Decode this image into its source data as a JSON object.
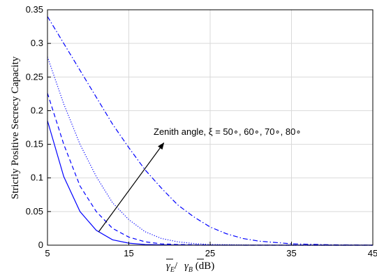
{
  "chart_data": {
    "type": "line",
    "ylabel": "Strictly Positive Secrecy Capacity",
    "xlabel": {
      "prefix": "γ",
      "sub_e": "E",
      "slash": "/ ",
      "sub_b": "B",
      "unit": " (dB)"
    },
    "xlim": [
      5,
      45
    ],
    "ylim": [
      0,
      0.35
    ],
    "xticks": [
      5,
      15,
      25,
      35,
      45
    ],
    "yticks": [
      0,
      0.05,
      0.1,
      0.15,
      0.2,
      0.25,
      0.3,
      0.35
    ],
    "ytick_labels": [
      "0",
      "0.05",
      "0.1",
      "0.15",
      "0.2",
      "0.25",
      "0.3",
      "0.35"
    ],
    "grid": true,
    "color": "#0000ff",
    "series": [
      {
        "style": "solid",
        "x": [
          5,
          7,
          9,
          11,
          13,
          15,
          17,
          20,
          25,
          30,
          35,
          40,
          45
        ],
        "y": [
          0.185,
          0.102,
          0.05,
          0.022,
          0.008,
          0.003,
          0.001,
          0.0003,
          0,
          0,
          0,
          0,
          0
        ]
      },
      {
        "style": "dashed",
        "x": [
          5,
          7,
          9,
          11,
          13,
          15,
          17,
          19,
          21,
          25,
          30,
          35,
          40,
          45
        ],
        "y": [
          0.226,
          0.15,
          0.088,
          0.05,
          0.025,
          0.012,
          0.005,
          0.002,
          0.001,
          0.0002,
          0,
          0,
          0,
          0
        ]
      },
      {
        "style": "dotted",
        "x": [
          5,
          7,
          9,
          11,
          13,
          15,
          17,
          19,
          21,
          23,
          25,
          30,
          35,
          40,
          45
        ],
        "y": [
          0.28,
          0.21,
          0.15,
          0.102,
          0.063,
          0.038,
          0.02,
          0.01,
          0.005,
          0.0025,
          0.001,
          0.0002,
          0,
          0,
          0
        ]
      },
      {
        "style": "dashdot",
        "x": [
          5,
          7,
          9,
          11,
          13,
          15,
          17,
          19,
          21,
          23,
          25,
          27,
          29,
          31,
          35,
          40,
          45
        ],
        "y": [
          0.34,
          0.3,
          0.26,
          0.22,
          0.18,
          0.145,
          0.112,
          0.085,
          0.06,
          0.042,
          0.027,
          0.017,
          0.01,
          0.006,
          0.002,
          0.0005,
          0
        ]
      }
    ],
    "annotation": {
      "text": "Zenith angle, ξ = 50∘, 60∘, 70∘, 80∘",
      "arrow_from": [
        11.3,
        0.02
      ],
      "arrow_to": [
        19.3,
        0.152
      ]
    }
  }
}
